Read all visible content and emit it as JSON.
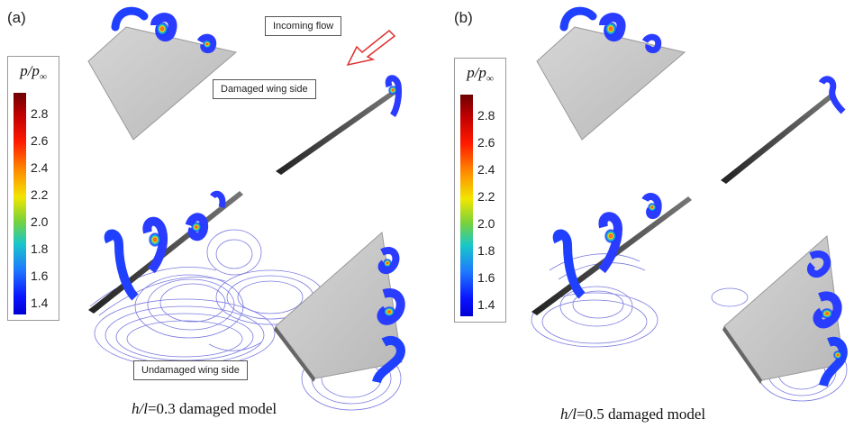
{
  "panels": [
    {
      "label": "(a)",
      "colorbar": {
        "title": "p/p",
        "title_sub": "∞",
        "ticks": [
          "2.8",
          "2.6",
          "2.4",
          "2.2",
          "2.0",
          "1.8",
          "1.6",
          "1.4"
        ]
      },
      "callouts": {
        "incoming_flow": "Incoming flow",
        "damaged_side": "Damaged wing side",
        "undamaged_side": "Undamaged wing side"
      },
      "caption": {
        "ratio": "h/l",
        "text": "=0.3 damaged model"
      }
    },
    {
      "label": "(b)",
      "colorbar": {
        "title": "p/p",
        "title_sub": "∞",
        "ticks": [
          "2.8",
          "2.6",
          "2.4",
          "2.2",
          "2.0",
          "1.8",
          "1.6",
          "1.4"
        ]
      },
      "caption": {
        "ratio": "h/l",
        "text": "=0.5 damaged model"
      }
    }
  ],
  "colors": {
    "contour_line": "#7a7ae0",
    "wing": "#c8c8c8",
    "arrow": "#e03030"
  }
}
